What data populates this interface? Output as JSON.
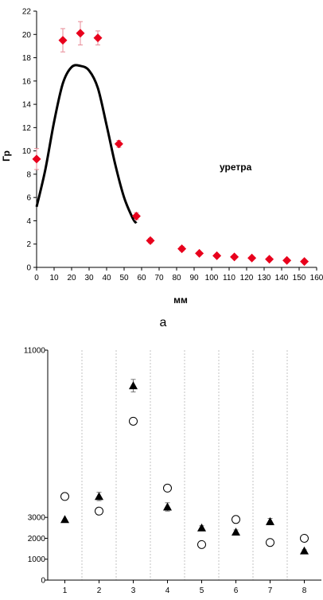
{
  "chart_data": [
    {
      "type": "scatter",
      "ylabel": "Гр",
      "xlabel": "мм",
      "panel_label": "а",
      "annotation": "уретра",
      "xlim": [
        0,
        160
      ],
      "ylim": [
        0,
        22
      ],
      "xticks": [
        0,
        10,
        20,
        30,
        40,
        50,
        60,
        70,
        80,
        90,
        100,
        110,
        120,
        130,
        140,
        150,
        160
      ],
      "yticks": [
        0,
        2,
        4,
        6,
        8,
        10,
        12,
        14,
        16,
        18,
        20,
        22
      ],
      "series": [
        {
          "marker": "diamond",
          "color": "#e8001c",
          "x": [
            0,
            15,
            25,
            35,
            47,
            57,
            65,
            83,
            93,
            103,
            113,
            123,
            133,
            143,
            153
          ],
          "y": [
            9.3,
            19.5,
            20.1,
            19.7,
            10.6,
            4.4,
            2.3,
            1.6,
            1.2,
            1.0,
            0.9,
            0.8,
            0.7,
            0.6,
            0.5
          ],
          "err": [
            0.9,
            1.0,
            1.0,
            0.6,
            0.3,
            0.3,
            0.2,
            0.2,
            0.1,
            0.1,
            0.1,
            0.1,
            0.1,
            0.1,
            0.1
          ]
        },
        {
          "type": "line",
          "color": "#000000",
          "x": [
            0,
            5,
            10,
            15,
            20,
            25,
            30,
            35,
            40,
            45,
            50,
            55,
            57
          ],
          "y": [
            5.2,
            8.4,
            12.5,
            15.8,
            17.2,
            17.3,
            16.9,
            15.4,
            12.2,
            8.8,
            6.0,
            4.2,
            3.8
          ]
        }
      ]
    },
    {
      "type": "scatter",
      "ylim": [
        0,
        11000
      ],
      "ytick_labels": [
        "0",
        "1000",
        "2000",
        "3000",
        "11000"
      ],
      "yticks": [
        0,
        1000,
        2000,
        3000,
        11000
      ],
      "categories": [
        "1",
        "2",
        "3",
        "4",
        "5",
        "6",
        "7",
        "8"
      ],
      "series": [
        {
          "marker": "circle-open",
          "values": [
            4000,
            3300,
            7600,
            4400,
            1700,
            2900,
            1800,
            2000
          ]
        },
        {
          "marker": "triangle-filled",
          "values": [
            2900,
            4000,
            9300,
            3500,
            2500,
            2300,
            2800,
            1400
          ],
          "err": [
            0,
            200,
            300,
            200,
            100,
            100,
            150,
            50
          ]
        }
      ]
    }
  ]
}
